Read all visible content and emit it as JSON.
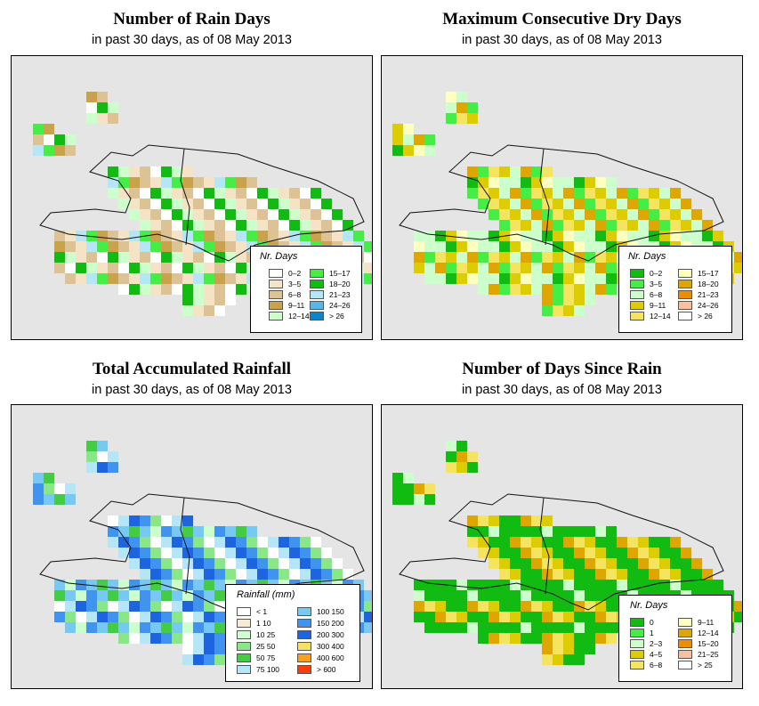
{
  "panels": [
    {
      "title": "Number of Rain Days",
      "subtitle": "in past 30 days, as of  08 May 2013",
      "legend": {
        "title": "Nr. Days",
        "items": [
          {
            "label": "0–2",
            "color": "#ffffff"
          },
          {
            "label": "3–5",
            "color": "#f5e3c6"
          },
          {
            "label": "6–8",
            "color": "#dcc294"
          },
          {
            "label": "9–11",
            "color": "#c9a24c"
          },
          {
            "label": "12–14",
            "color": "#ccffcc"
          },
          {
            "label": "15–17",
            "color": "#44ee44"
          },
          {
            "label": "18–20",
            "color": "#11bb11"
          },
          {
            "label": "21–23",
            "color": "#b4e6f8"
          },
          {
            "label": "24–26",
            "color": "#58b7ea"
          },
          {
            "label": "> 26",
            "color": "#0a84cc"
          }
        ]
      }
    },
    {
      "title": "Maximum Consecutive Dry Days",
      "subtitle": "in past 30 days, as of  08 May 2013",
      "legend": {
        "title": "Nr. Days",
        "items": [
          {
            "label": "0–2",
            "color": "#11bb11"
          },
          {
            "label": "3–5",
            "color": "#44ee44"
          },
          {
            "label": "6–8",
            "color": "#ccffcc"
          },
          {
            "label": "9–11",
            "color": "#ddcc00"
          },
          {
            "label": "12–14",
            "color": "#f4e460"
          },
          {
            "label": "15–17",
            "color": "#ffffc0"
          },
          {
            "label": "18–20",
            "color": "#e0a600"
          },
          {
            "label": "21–23",
            "color": "#f08c00"
          },
          {
            "label": "24–26",
            "color": "#f8c0a0"
          },
          {
            "label": "> 26",
            "color": "#ffffff"
          }
        ]
      }
    },
    {
      "title": "Total Accumulated Rainfall",
      "subtitle": "in past 30 days, as of  08 May 2013",
      "legend": {
        "title": "Rainfall (mm)",
        "items": [
          {
            "label": "< 1",
            "color": "#ffffff"
          },
          {
            "label": "1    10",
            "color": "#f6ecd4"
          },
          {
            "label": "10    25",
            "color": "#ccffcc"
          },
          {
            "label": "25    50",
            "color": "#88e888"
          },
          {
            "label": "50    75",
            "color": "#44cc44"
          },
          {
            "label": "75   100",
            "color": "#b4e6f8"
          },
          {
            "label": "100   150",
            "color": "#78c8f4"
          },
          {
            "label": "150   200",
            "color": "#4094f0"
          },
          {
            "label": "200   300",
            "color": "#1c64e0"
          },
          {
            "label": "300   400",
            "color": "#f8e060"
          },
          {
            "label": "400   600",
            "color": "#f8a020"
          },
          {
            "label": "> 600",
            "color": "#f83c0c"
          }
        ]
      }
    },
    {
      "title": "Number of Days Since Rain",
      "subtitle": "in past 30 days, as of  08 May 2013",
      "legend": {
        "title": "Nr. Days",
        "items": [
          {
            "label": "0",
            "color": "#11bb11"
          },
          {
            "label": "1",
            "color": "#44ee44"
          },
          {
            "label": "2–3",
            "color": "#ccffcc"
          },
          {
            "label": "4–5",
            "color": "#ddcc00"
          },
          {
            "label": "6–8",
            "color": "#f4e460"
          },
          {
            "label": "9–11",
            "color": "#ffffc0"
          },
          {
            "label": "12–14",
            "color": "#e0a600"
          },
          {
            "label": "15–20",
            "color": "#f08c00"
          },
          {
            "label": "21–25",
            "color": "#f8c0a0"
          },
          {
            "label": "> 25",
            "color": "#ffffff"
          }
        ]
      }
    }
  ]
}
